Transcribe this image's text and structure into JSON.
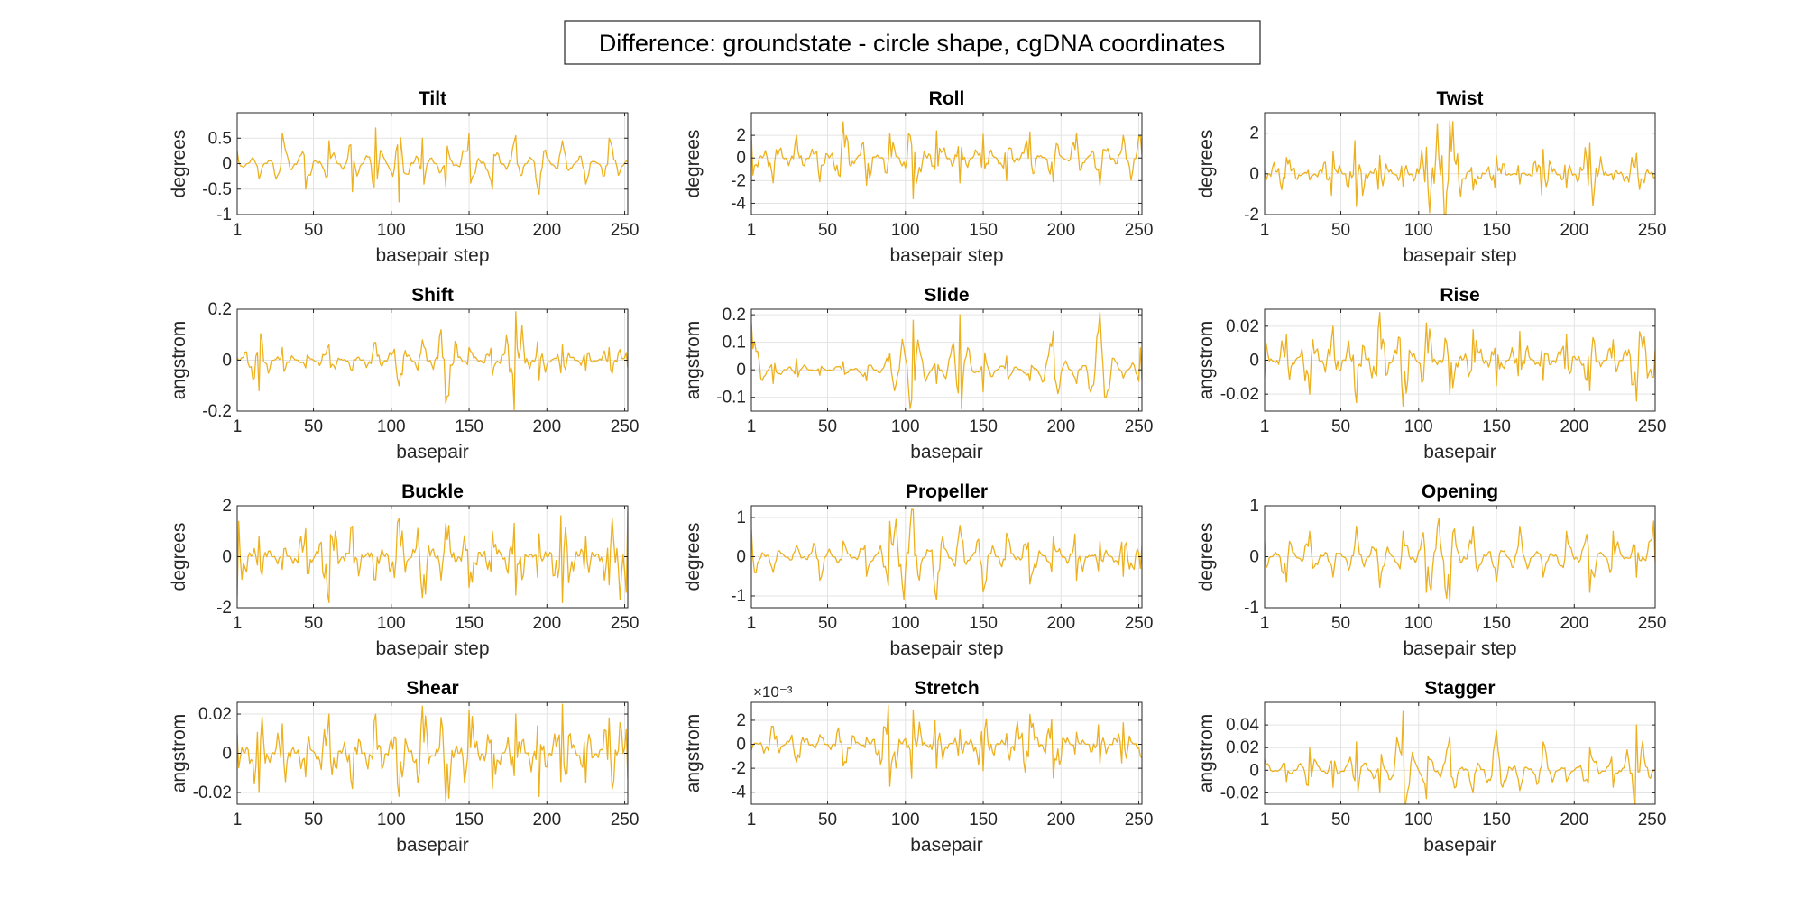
{
  "figure": {
    "title": "Difference: groundstate - circle shape, cgDNA coordinates"
  },
  "colors": {
    "series": "#EDB120",
    "axis": "#262626",
    "grid": "#e3e3e3",
    "background": "#ffffff"
  },
  "chart_data": [
    {
      "type": "line",
      "title": "Tilt",
      "xlabel": "basepair step",
      "ylabel": "degrees",
      "xlim": [
        1,
        252
      ],
      "ylim": [
        -1,
        1
      ],
      "xticks": [
        1,
        50,
        100,
        150,
        200,
        250
      ],
      "xticklabels": [
        "1",
        "50",
        "100",
        "150",
        "200",
        "250"
      ],
      "yticks": [
        -1,
        -0.5,
        0,
        0.5
      ],
      "yticklabels": [
        "-1",
        "-0.5",
        "0",
        "0.5"
      ],
      "exponent": "",
      "grid": true,
      "legend": "none",
      "period": 10.5,
      "x": [
        1,
        15,
        30,
        45,
        60,
        75,
        90,
        105,
        120,
        135,
        150,
        165,
        180,
        195,
        210,
        225,
        240,
        251
      ],
      "y": [
        0.25,
        -0.3,
        0.6,
        -0.5,
        0.45,
        -0.55,
        0.7,
        -0.75,
        0.5,
        -0.45,
        0.6,
        -0.5,
        0.55,
        -0.6,
        0.45,
        -0.4,
        0.5,
        0.05
      ]
    },
    {
      "type": "line",
      "title": "Roll",
      "xlabel": "basepair step",
      "ylabel": "degrees",
      "xlim": [
        1,
        252
      ],
      "ylim": [
        -5,
        4
      ],
      "xticks": [
        1,
        50,
        100,
        150,
        200,
        250
      ],
      "xticklabels": [
        "1",
        "50",
        "100",
        "150",
        "200",
        "250"
      ],
      "yticks": [
        -4,
        -2,
        0,
        2
      ],
      "yticklabels": [
        "-4",
        "-2",
        "0",
        "2"
      ],
      "exponent": "",
      "grid": true,
      "legend": "none",
      "period": 10.5,
      "x": [
        1,
        15,
        30,
        45,
        60,
        75,
        90,
        105,
        120,
        135,
        150,
        165,
        180,
        195,
        210,
        225,
        240,
        251
      ],
      "y": [
        2.1,
        -2.2,
        2.0,
        -2.1,
        3.2,
        -2.4,
        2.2,
        -3.6,
        2.4,
        -2.2,
        2.1,
        -2.0,
        2.3,
        -2.1,
        2.2,
        -2.4,
        2.0,
        1.9
      ]
    },
    {
      "type": "line",
      "title": "Twist",
      "xlabel": "basepair step",
      "ylabel": "degrees",
      "xlim": [
        1,
        252
      ],
      "ylim": [
        -2,
        3
      ],
      "xticks": [
        1,
        50,
        100,
        150,
        200,
        250
      ],
      "xticklabels": [
        "1",
        "50",
        "100",
        "150",
        "200",
        "250"
      ],
      "yticks": [
        -2,
        0,
        2
      ],
      "yticklabels": [
        "-2",
        "0",
        "2"
      ],
      "exponent": "",
      "grid": true,
      "legend": "none",
      "period": 10.5,
      "x": [
        1,
        15,
        30,
        45,
        60,
        75,
        90,
        105,
        120,
        135,
        150,
        165,
        180,
        195,
        210,
        225,
        240,
        251
      ],
      "y": [
        0.2,
        0.8,
        -0.3,
        1.1,
        -1.6,
        0.9,
        -0.6,
        1.3,
        2.6,
        -0.8,
        0.9,
        -0.5,
        1.2,
        -0.7,
        1.5,
        -0.3,
        1.0,
        -0.2
      ]
    },
    {
      "type": "line",
      "title": "Shift",
      "xlabel": "basepair",
      "ylabel": "angstrom",
      "xlim": [
        1,
        252
      ],
      "ylim": [
        -0.2,
        0.2
      ],
      "xticks": [
        1,
        50,
        100,
        150,
        200,
        250
      ],
      "xticklabels": [
        "1",
        "50",
        "100",
        "150",
        "200",
        "250"
      ],
      "yticks": [
        -0.2,
        0,
        0.2
      ],
      "yticklabels": [
        "-0.2",
        "0",
        "0.2"
      ],
      "exponent": "",
      "grid": true,
      "legend": "none",
      "period": 10.5,
      "x": [
        1,
        15,
        30,
        45,
        60,
        75,
        90,
        105,
        120,
        135,
        150,
        165,
        180,
        195,
        210,
        225,
        240,
        251
      ],
      "y": [
        0.01,
        -0.12,
        0.05,
        -0.03,
        0.06,
        -0.04,
        0.07,
        -0.1,
        0.08,
        -0.17,
        0.05,
        -0.06,
        0.19,
        -0.08,
        0.06,
        -0.04,
        0.05,
        0.03
      ]
    },
    {
      "type": "line",
      "title": "Slide",
      "xlabel": "basepair",
      "ylabel": "angstrom",
      "xlim": [
        1,
        252
      ],
      "ylim": [
        -0.15,
        0.22
      ],
      "xticks": [
        1,
        50,
        100,
        150,
        200,
        250
      ],
      "xticklabels": [
        "1",
        "50",
        "100",
        "150",
        "200",
        "250"
      ],
      "yticks": [
        -0.1,
        0,
        0.1,
        0.2
      ],
      "yticklabels": [
        "-0.1",
        "0",
        "0.1",
        "0.2"
      ],
      "exponent": "",
      "grid": true,
      "legend": "none",
      "period": 10.5,
      "x": [
        1,
        15,
        30,
        45,
        60,
        75,
        90,
        105,
        120,
        135,
        150,
        165,
        180,
        195,
        210,
        225,
        240,
        251
      ],
      "y": [
        0.17,
        -0.05,
        0.04,
        -0.02,
        0.03,
        -0.04,
        0.06,
        0.18,
        -0.05,
        0.2,
        -0.08,
        0.05,
        -0.04,
        0.14,
        -0.05,
        0.21,
        -0.03,
        0.08
      ]
    },
    {
      "type": "line",
      "title": "Rise",
      "xlabel": "basepair",
      "ylabel": "angstrom",
      "xlim": [
        1,
        252
      ],
      "ylim": [
        -0.03,
        0.03
      ],
      "xticks": [
        1,
        50,
        100,
        150,
        200,
        250
      ],
      "xticklabels": [
        "1",
        "50",
        "100",
        "150",
        "200",
        "250"
      ],
      "yticks": [
        -0.02,
        0,
        0.02
      ],
      "yticklabels": [
        "-0.02",
        "0",
        "0.02"
      ],
      "exponent": "",
      "grid": true,
      "legend": "none",
      "period": 10.5,
      "x": [
        1,
        15,
        30,
        45,
        60,
        75,
        90,
        105,
        120,
        135,
        150,
        165,
        180,
        195,
        210,
        225,
        240,
        251
      ],
      "y": [
        -0.01,
        0.015,
        -0.02,
        0.02,
        -0.025,
        0.028,
        -0.027,
        0.022,
        -0.02,
        0.018,
        -0.015,
        0.017,
        -0.012,
        0.015,
        -0.018,
        0.012,
        -0.024,
        -0.01
      ]
    },
    {
      "type": "line",
      "title": "Buckle",
      "xlabel": "basepair step",
      "ylabel": "degrees",
      "xlim": [
        1,
        252
      ],
      "ylim": [
        -2,
        2
      ],
      "xticks": [
        1,
        50,
        100,
        150,
        200,
        250
      ],
      "xticklabels": [
        "1",
        "50",
        "100",
        "150",
        "200",
        "250"
      ],
      "yticks": [
        -2,
        0,
        2
      ],
      "yticklabels": [
        "-2",
        "0",
        "2"
      ],
      "exponent": "",
      "grid": true,
      "legend": "none",
      "period": 10.5,
      "x": [
        1,
        15,
        30,
        45,
        60,
        75,
        90,
        105,
        120,
        135,
        150,
        165,
        180,
        195,
        210,
        225,
        240,
        251
      ],
      "y": [
        -1.6,
        0.8,
        -0.5,
        1.1,
        -1.8,
        1.2,
        -0.9,
        1.5,
        -1.6,
        1.3,
        -1.2,
        1.0,
        -1.5,
        0.9,
        -1.8,
        0.8,
        -1.1,
        -1.4
      ]
    },
    {
      "type": "line",
      "title": "Propeller",
      "xlabel": "basepair step",
      "ylabel": "degrees",
      "xlim": [
        1,
        252
      ],
      "ylim": [
        -1.3,
        1.3
      ],
      "xticks": [
        1,
        50,
        100,
        150,
        200,
        250
      ],
      "xticklabels": [
        "1",
        "50",
        "100",
        "150",
        "200",
        "250"
      ],
      "yticks": [
        -1,
        0,
        1
      ],
      "yticklabels": [
        "-1",
        "0",
        "1"
      ],
      "exponent": "",
      "grid": true,
      "legend": "none",
      "period": 10.5,
      "x": [
        1,
        15,
        30,
        45,
        60,
        75,
        90,
        105,
        120,
        135,
        150,
        165,
        180,
        195,
        210,
        225,
        240,
        251
      ],
      "y": [
        0.7,
        -0.4,
        0.3,
        -0.6,
        0.4,
        -0.5,
        0.9,
        1.2,
        -1.1,
        0.8,
        -0.9,
        0.6,
        -0.7,
        0.5,
        -0.6,
        0.4,
        -0.5,
        -0.3
      ]
    },
    {
      "type": "line",
      "title": "Opening",
      "xlabel": "basepair step",
      "ylabel": "degrees",
      "xlim": [
        1,
        252
      ],
      "ylim": [
        -1,
        1
      ],
      "xticks": [
        1,
        50,
        100,
        150,
        200,
        250
      ],
      "xticklabels": [
        "1",
        "50",
        "100",
        "150",
        "200",
        "250"
      ],
      "yticks": [
        -1,
        0,
        1
      ],
      "yticklabels": [
        "-1",
        "0",
        "1"
      ],
      "exponent": "",
      "grid": true,
      "legend": "none",
      "period": 10.5,
      "x": [
        1,
        15,
        30,
        45,
        60,
        75,
        90,
        105,
        120,
        135,
        150,
        165,
        180,
        195,
        210,
        225,
        240,
        251
      ],
      "y": [
        0.3,
        -0.5,
        0.5,
        -0.4,
        0.6,
        -0.6,
        0.5,
        -0.7,
        -0.9,
        0.6,
        -0.5,
        0.6,
        -0.4,
        0.5,
        -0.7,
        0.5,
        -0.4,
        0.7
      ]
    },
    {
      "type": "line",
      "title": "Shear",
      "xlabel": "basepair",
      "ylabel": "angstrom",
      "xlim": [
        1,
        252
      ],
      "ylim": [
        -0.026,
        0.026
      ],
      "xticks": [
        1,
        50,
        100,
        150,
        200,
        250
      ],
      "xticklabels": [
        "1",
        "50",
        "100",
        "150",
        "200",
        "250"
      ],
      "yticks": [
        -0.02,
        0,
        0.02
      ],
      "yticklabels": [
        "-0.02",
        "0",
        "0.02"
      ],
      "exponent": "",
      "grid": true,
      "legend": "none",
      "period": 10.5,
      "x": [
        1,
        15,
        30,
        45,
        60,
        75,
        90,
        105,
        120,
        135,
        150,
        165,
        180,
        195,
        210,
        225,
        240,
        251
      ],
      "y": [
        0.01,
        -0.02,
        0.015,
        -0.012,
        0.02,
        -0.018,
        0.02,
        -0.022,
        0.024,
        -0.025,
        0.022,
        -0.018,
        0.02,
        -0.022,
        0.025,
        -0.015,
        0.018,
        0.012
      ]
    },
    {
      "type": "line",
      "title": "Stretch",
      "xlabel": "basepair",
      "ylabel": "angstrom",
      "xlim": [
        1,
        252
      ],
      "ylim": [
        -5,
        3.5
      ],
      "xticks": [
        1,
        50,
        100,
        150,
        200,
        250
      ],
      "xticklabels": [
        "1",
        "50",
        "100",
        "150",
        "200",
        "250"
      ],
      "yticks": [
        -4,
        -2,
        0,
        2
      ],
      "yticklabels": [
        "-4",
        "-2",
        "0",
        "2"
      ],
      "exponent": "×10⁻³",
      "grid": true,
      "legend": "none",
      "period": 10.5,
      "x": [
        1,
        15,
        30,
        45,
        60,
        75,
        90,
        105,
        120,
        135,
        150,
        165,
        180,
        195,
        210,
        225,
        240,
        251
      ],
      "y": [
        -0.5,
        1.5,
        -1.5,
        0.8,
        -1.8,
        0.6,
        -3.5,
        2.8,
        -2.0,
        1.2,
        -2.2,
        0.9,
        2.5,
        -2.8,
        1.0,
        -1.6,
        1.8,
        -1.0
      ]
    },
    {
      "type": "line",
      "title": "Stagger",
      "xlabel": "basepair",
      "ylabel": "angstrom",
      "xlim": [
        1,
        252
      ],
      "ylim": [
        -0.03,
        0.06
      ],
      "xticks": [
        1,
        50,
        100,
        150,
        200,
        250
      ],
      "xticklabels": [
        "1",
        "50",
        "100",
        "150",
        "200",
        "250"
      ],
      "yticks": [
        -0.02,
        0,
        0.02,
        0.04
      ],
      "yticklabels": [
        "-0.02",
        "0",
        "0.02",
        "0.04"
      ],
      "exponent": "",
      "grid": true,
      "legend": "none",
      "period": 10.5,
      "x": [
        1,
        15,
        30,
        45,
        60,
        75,
        90,
        105,
        120,
        135,
        150,
        165,
        180,
        195,
        210,
        225,
        240,
        251
      ],
      "y": [
        0.01,
        -0.01,
        0.02,
        -0.015,
        0.025,
        -0.02,
        0.052,
        -0.025,
        0.03,
        -0.02,
        0.035,
        -0.018,
        0.025,
        -0.01,
        0.02,
        -0.015,
        0.04,
        0.0
      ]
    }
  ]
}
